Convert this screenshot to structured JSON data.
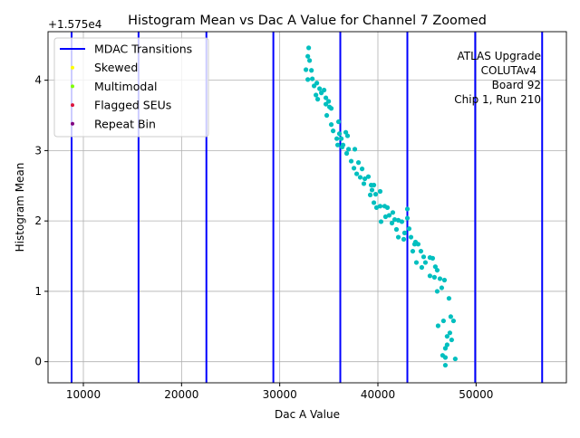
{
  "chart_data": {
    "type": "scatter",
    "title": "Histogram Mean vs Dac A Value for Channel 7 Zoomed",
    "xlabel": "Dac A Value",
    "ylabel": "Histogram Mean",
    "y_offset_label": "+1.575e4",
    "xlim": [
      6400,
      59200
    ],
    "ylim": [
      -0.3,
      4.69
    ],
    "xticks": [
      10000,
      20000,
      30000,
      40000,
      50000
    ],
    "xtick_labels": [
      "10000",
      "20000",
      "30000",
      "40000",
      "50000"
    ],
    "yticks": [
      0,
      1,
      2,
      3,
      4
    ],
    "ytick_labels": [
      "0",
      "1",
      "2",
      "3",
      "4"
    ],
    "grid": true,
    "legend_position": "top-left",
    "legend": [
      {
        "label": "MDAC Transitions",
        "kind": "line",
        "color": "#0000ff"
      },
      {
        "label": "Skewed",
        "kind": "dot",
        "color": "#ffff00"
      },
      {
        "label": "Multimodal",
        "kind": "dot",
        "color": "#7fff00"
      },
      {
        "label": "Flagged SEUs",
        "kind": "dot",
        "color": "#dc143c"
      },
      {
        "label": "Repeat Bin",
        "kind": "dot",
        "color": "#800080"
      }
    ],
    "annotation": [
      "ATLAS Upgrade",
      "COLUTAv4",
      "Board 92",
      "Chip 1, Run 210"
    ],
    "mdac_transitions": [
      8800,
      15620,
      22530,
      29350,
      36170,
      43000,
      49910,
      56730
    ],
    "series": [
      {
        "name": "Data",
        "color": "#00bfbf",
        "points": [
          [
            32950,
            4.46
          ],
          [
            32860,
            4.34
          ],
          [
            33040,
            4.28
          ],
          [
            32670,
            4.15
          ],
          [
            33230,
            4.14
          ],
          [
            32860,
            4.01
          ],
          [
            33320,
            4.02
          ],
          [
            33500,
            3.92
          ],
          [
            33780,
            3.96
          ],
          [
            34060,
            3.88
          ],
          [
            34240,
            3.82
          ],
          [
            33690,
            3.79
          ],
          [
            33870,
            3.73
          ],
          [
            34520,
            3.86
          ],
          [
            34700,
            3.75
          ],
          [
            34980,
            3.7
          ],
          [
            35070,
            3.62
          ],
          [
            34700,
            3.66
          ],
          [
            35250,
            3.6
          ],
          [
            34790,
            3.5
          ],
          [
            35250,
            3.37
          ],
          [
            35990,
            3.41
          ],
          [
            35440,
            3.28
          ],
          [
            36080,
            3.24
          ],
          [
            35810,
            3.17
          ],
          [
            36270,
            3.17
          ],
          [
            35900,
            3.08
          ],
          [
            36450,
            3.08
          ],
          [
            36730,
            3.26
          ],
          [
            36910,
            3.21
          ],
          [
            36360,
            3.05
          ],
          [
            37010,
            3.02
          ],
          [
            36820,
            2.96
          ],
          [
            37650,
            3.02
          ],
          [
            37280,
            2.85
          ],
          [
            37560,
            2.75
          ],
          [
            38020,
            2.83
          ],
          [
            38390,
            2.74
          ],
          [
            37840,
            2.67
          ],
          [
            38200,
            2.62
          ],
          [
            38670,
            2.6
          ],
          [
            39030,
            2.63
          ],
          [
            38570,
            2.53
          ],
          [
            39310,
            2.51
          ],
          [
            39590,
            2.51
          ],
          [
            39220,
            2.37
          ],
          [
            39400,
            2.44
          ],
          [
            39770,
            2.38
          ],
          [
            39590,
            2.26
          ],
          [
            40230,
            2.42
          ],
          [
            39860,
            2.19
          ],
          [
            40230,
            2.21
          ],
          [
            40690,
            2.21
          ],
          [
            40970,
            2.19
          ],
          [
            40780,
            2.06
          ],
          [
            40320,
            1.99
          ],
          [
            41150,
            2.08
          ],
          [
            41520,
            2.12
          ],
          [
            41430,
            1.97
          ],
          [
            41710,
            2.02
          ],
          [
            42080,
            2.01
          ],
          [
            42440,
            1.99
          ],
          [
            41890,
            1.88
          ],
          [
            43000,
            2.17
          ],
          [
            43000,
            2.04
          ],
          [
            43180,
            1.89
          ],
          [
            42720,
            1.83
          ],
          [
            42080,
            1.77
          ],
          [
            42630,
            1.74
          ],
          [
            43370,
            1.77
          ],
          [
            43740,
            1.67
          ],
          [
            43550,
            1.57
          ],
          [
            43830,
            1.7
          ],
          [
            44100,
            1.67
          ],
          [
            44380,
            1.57
          ],
          [
            44660,
            1.49
          ],
          [
            44840,
            1.41
          ],
          [
            43920,
            1.41
          ],
          [
            44470,
            1.34
          ],
          [
            45300,
            1.48
          ],
          [
            45580,
            1.47
          ],
          [
            45850,
            1.35
          ],
          [
            46040,
            1.3
          ],
          [
            45300,
            1.22
          ],
          [
            45760,
            1.2
          ],
          [
            46320,
            1.18
          ],
          [
            46500,
            1.05
          ],
          [
            46040,
            1.0
          ],
          [
            46780,
            1.16
          ],
          [
            47240,
            0.9
          ],
          [
            46130,
            0.51
          ],
          [
            46680,
            0.58
          ],
          [
            47420,
            0.64
          ],
          [
            47700,
            0.58
          ],
          [
            47330,
            0.41
          ],
          [
            47510,
            0.31
          ],
          [
            47050,
            0.24
          ],
          [
            46870,
            0.19
          ],
          [
            46590,
            0.09
          ],
          [
            46870,
            0.06
          ],
          [
            46870,
            -0.05
          ],
          [
            47880,
            0.04
          ],
          [
            47050,
            0.36
          ]
        ]
      }
    ]
  }
}
